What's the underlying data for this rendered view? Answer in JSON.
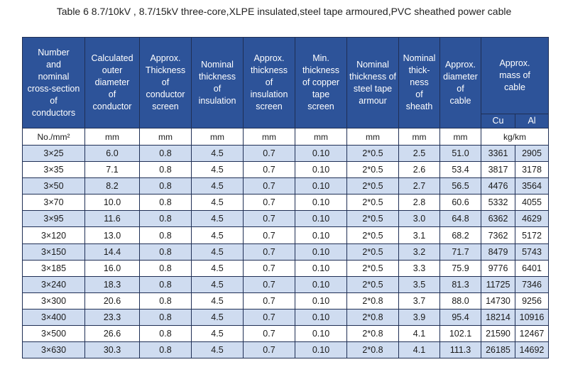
{
  "title": "Table 6    8.7/10kV , 8.7/15kV three-core,XLPE insulated,steel tape armoured,PVC sheathed power cable",
  "headers": [
    [
      "Number",
      "and",
      "nominal",
      "cross-section",
      "of",
      "conductors"
    ],
    [
      "Calculated",
      "outer",
      "diameter",
      "of",
      "conductor"
    ],
    [
      "Approx.",
      "Thickness",
      "of",
      "conductor",
      "screen"
    ],
    [
      "Nominal",
      "thickness",
      "of",
      "insulation"
    ],
    [
      "Approx.",
      "thickness",
      "of",
      "insulation",
      "screen"
    ],
    [
      "Min.",
      "thickness",
      "of copper",
      "tape",
      "screen"
    ],
    [
      "Nominal",
      "thickness of",
      "steel tape",
      "armour"
    ],
    [
      "Nominal",
      "thick-",
      "ness",
      "of",
      "sheath"
    ],
    [
      "Approx.",
      "diameter",
      "of",
      "cable"
    ],
    [
      "Approx.",
      "mass of",
      "cable"
    ]
  ],
  "mass_sub": [
    "Cu",
    "Al"
  ],
  "units": [
    "No./mm²",
    "mm",
    "mm",
    "mm",
    "mm",
    "mm",
    "mm",
    "mm",
    "mm",
    "kg/km"
  ],
  "rows": [
    [
      "3×25",
      "6.0",
      "0.8",
      "4.5",
      "0.7",
      "0.10",
      "2*0.5",
      "2.5",
      "51.0",
      "3361",
      "2905"
    ],
    [
      "3×35",
      "7.1",
      "0.8",
      "4.5",
      "0.7",
      "0.10",
      "2*0.5",
      "2.6",
      "53.4",
      "3817",
      "3178"
    ],
    [
      "3×50",
      "8.2",
      "0.8",
      "4.5",
      "0.7",
      "0.10",
      "2*0.5",
      "2.7",
      "56.5",
      "4476",
      "3564"
    ],
    [
      "3×70",
      "10.0",
      "0.8",
      "4.5",
      "0.7",
      "0.10",
      "2*0.5",
      "2.8",
      "60.6",
      "5332",
      "4055"
    ],
    [
      "3×95",
      "11.6",
      "0.8",
      "4.5",
      "0.7",
      "0.10",
      "2*0.5",
      "3.0",
      "64.8",
      "6362",
      "4629"
    ],
    [
      "3×120",
      "13.0",
      "0.8",
      "4.5",
      "0.7",
      "0.10",
      "2*0.5",
      "3.1",
      "68.2",
      "7362",
      "5172"
    ],
    [
      "3×150",
      "14.4",
      "0.8",
      "4.5",
      "0.7",
      "0.10",
      "2*0.5",
      "3.2",
      "71.7",
      "8479",
      "5743"
    ],
    [
      "3×185",
      "16.0",
      "0.8",
      "4.5",
      "0.7",
      "0.10",
      "2*0.5",
      "3.3",
      "75.9",
      "9776",
      "6401"
    ],
    [
      "3×240",
      "18.3",
      "0.8",
      "4.5",
      "0.7",
      "0.10",
      "2*0.5",
      "3.5",
      "81.3",
      "11725",
      "7346"
    ],
    [
      "3×300",
      "20.6",
      "0.8",
      "4.5",
      "0.7",
      "0.10",
      "2*0.8",
      "3.7",
      "88.0",
      "14730",
      "9256"
    ],
    [
      "3×400",
      "23.3",
      "0.8",
      "4.5",
      "0.7",
      "0.10",
      "2*0.8",
      "3.9",
      "95.4",
      "18214",
      "10916"
    ],
    [
      "3×500",
      "26.6",
      "0.8",
      "4.5",
      "0.7",
      "0.10",
      "2*0.8",
      "4.1",
      "102.1",
      "21590",
      "12467"
    ],
    [
      "3×630",
      "30.3",
      "0.8",
      "4.5",
      "0.7",
      "0.10",
      "2*0.8",
      "4.1",
      "111.3",
      "26185",
      "14692"
    ]
  ],
  "colors": {
    "header_bg": "#2d5399",
    "alt_row_bg": "#cfdcf0",
    "border": "#1f2f55"
  }
}
